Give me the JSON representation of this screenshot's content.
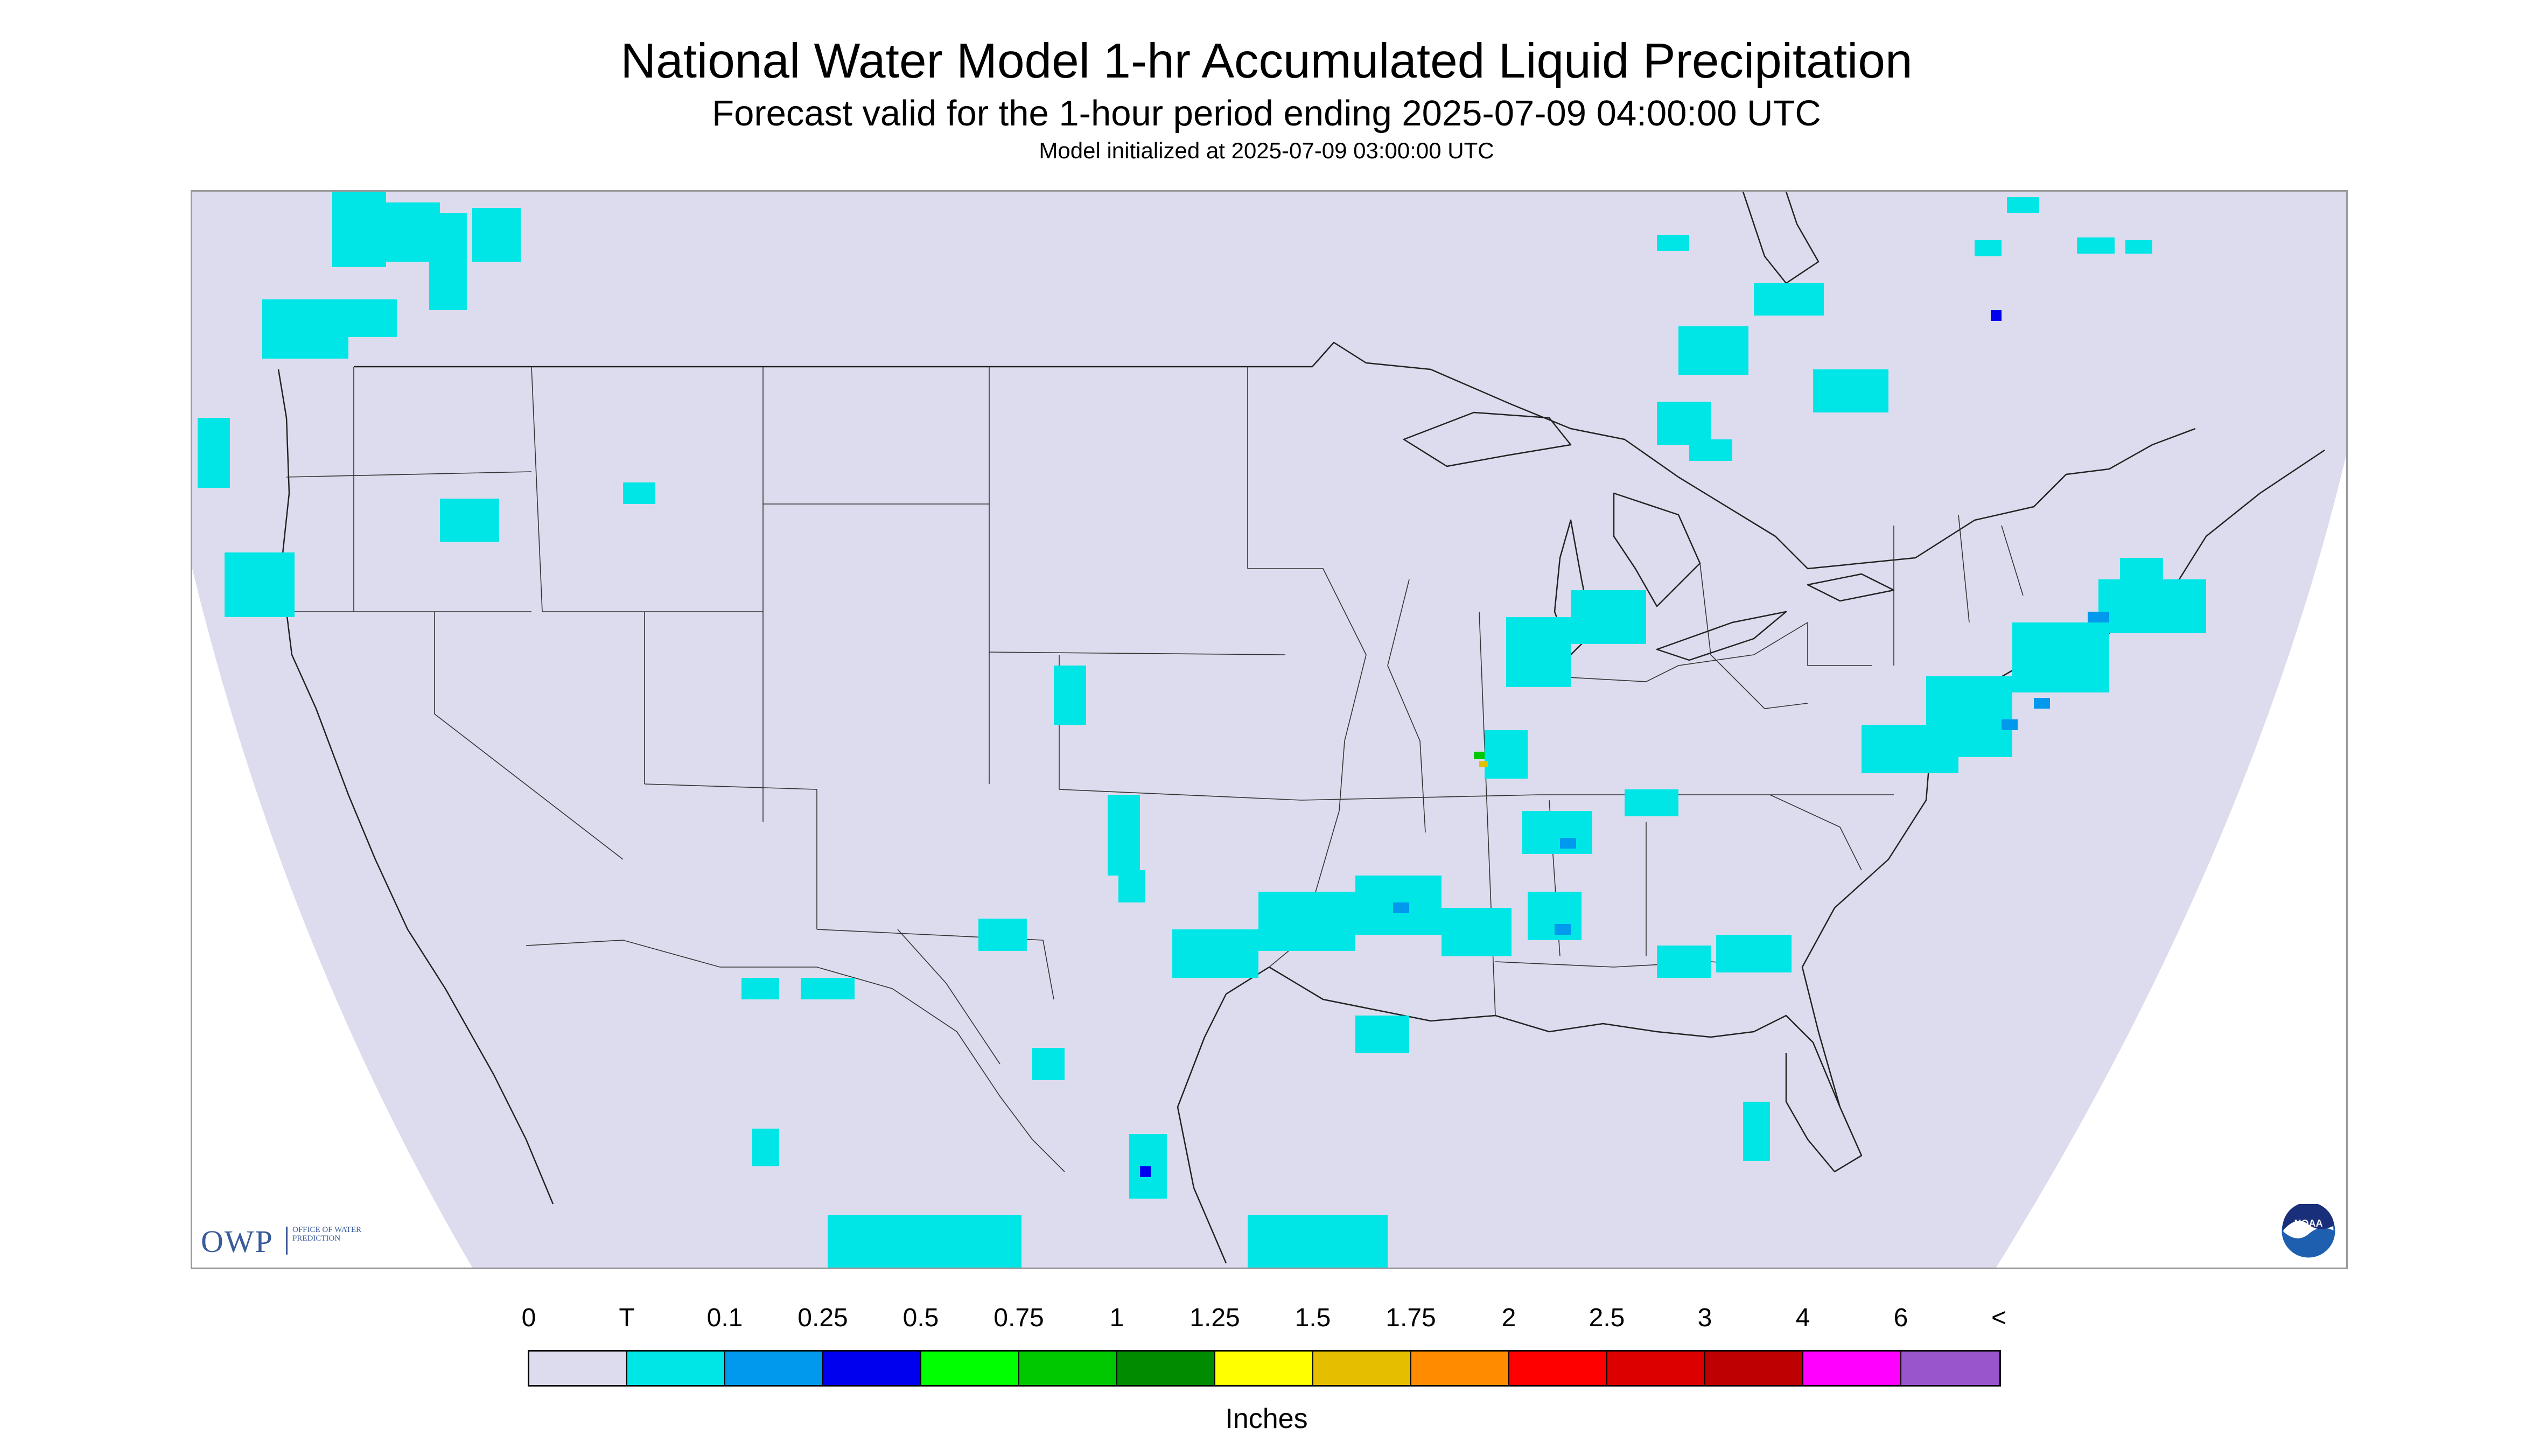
{
  "title": "National Water Model 1-hr Accumulated Liquid Precipitation",
  "subtitle": "Forecast valid for the 1-hour period ending 2025-07-09 04:00:00 UTC",
  "init_line": "Model initialized at 2025-07-09 03:00:00 UTC",
  "logos": {
    "owp_mark": "OWP",
    "owp_text": "OFFICE OF WATER PREDICTION",
    "noaa": "NOAA"
  },
  "legend": {
    "units": "Inches",
    "labels": [
      "0",
      "T",
      "0.1",
      "0.25",
      "0.5",
      "0.75",
      "1",
      "1.25",
      "1.5",
      "1.75",
      "2",
      "2.5",
      "3",
      "4",
      "6",
      "<"
    ],
    "colors": [
      "#dcdcee",
      "#00e6e6",
      "#0099ee",
      "#0000ee",
      "#00ff00",
      "#00c800",
      "#008c00",
      "#ffff00",
      "#e6be00",
      "#ff8c00",
      "#ff0000",
      "#dc0000",
      "#be0000",
      "#ff00ff",
      "#9955cc"
    ]
  },
  "colors": {
    "domain_fill": "#dcdcee",
    "trace": "#00e6e6",
    "light": "#0099ee",
    "moderate": "#0000ee",
    "heavy": "#00c800",
    "very_heavy": "#e6be00",
    "boundary": "#222222"
  }
}
